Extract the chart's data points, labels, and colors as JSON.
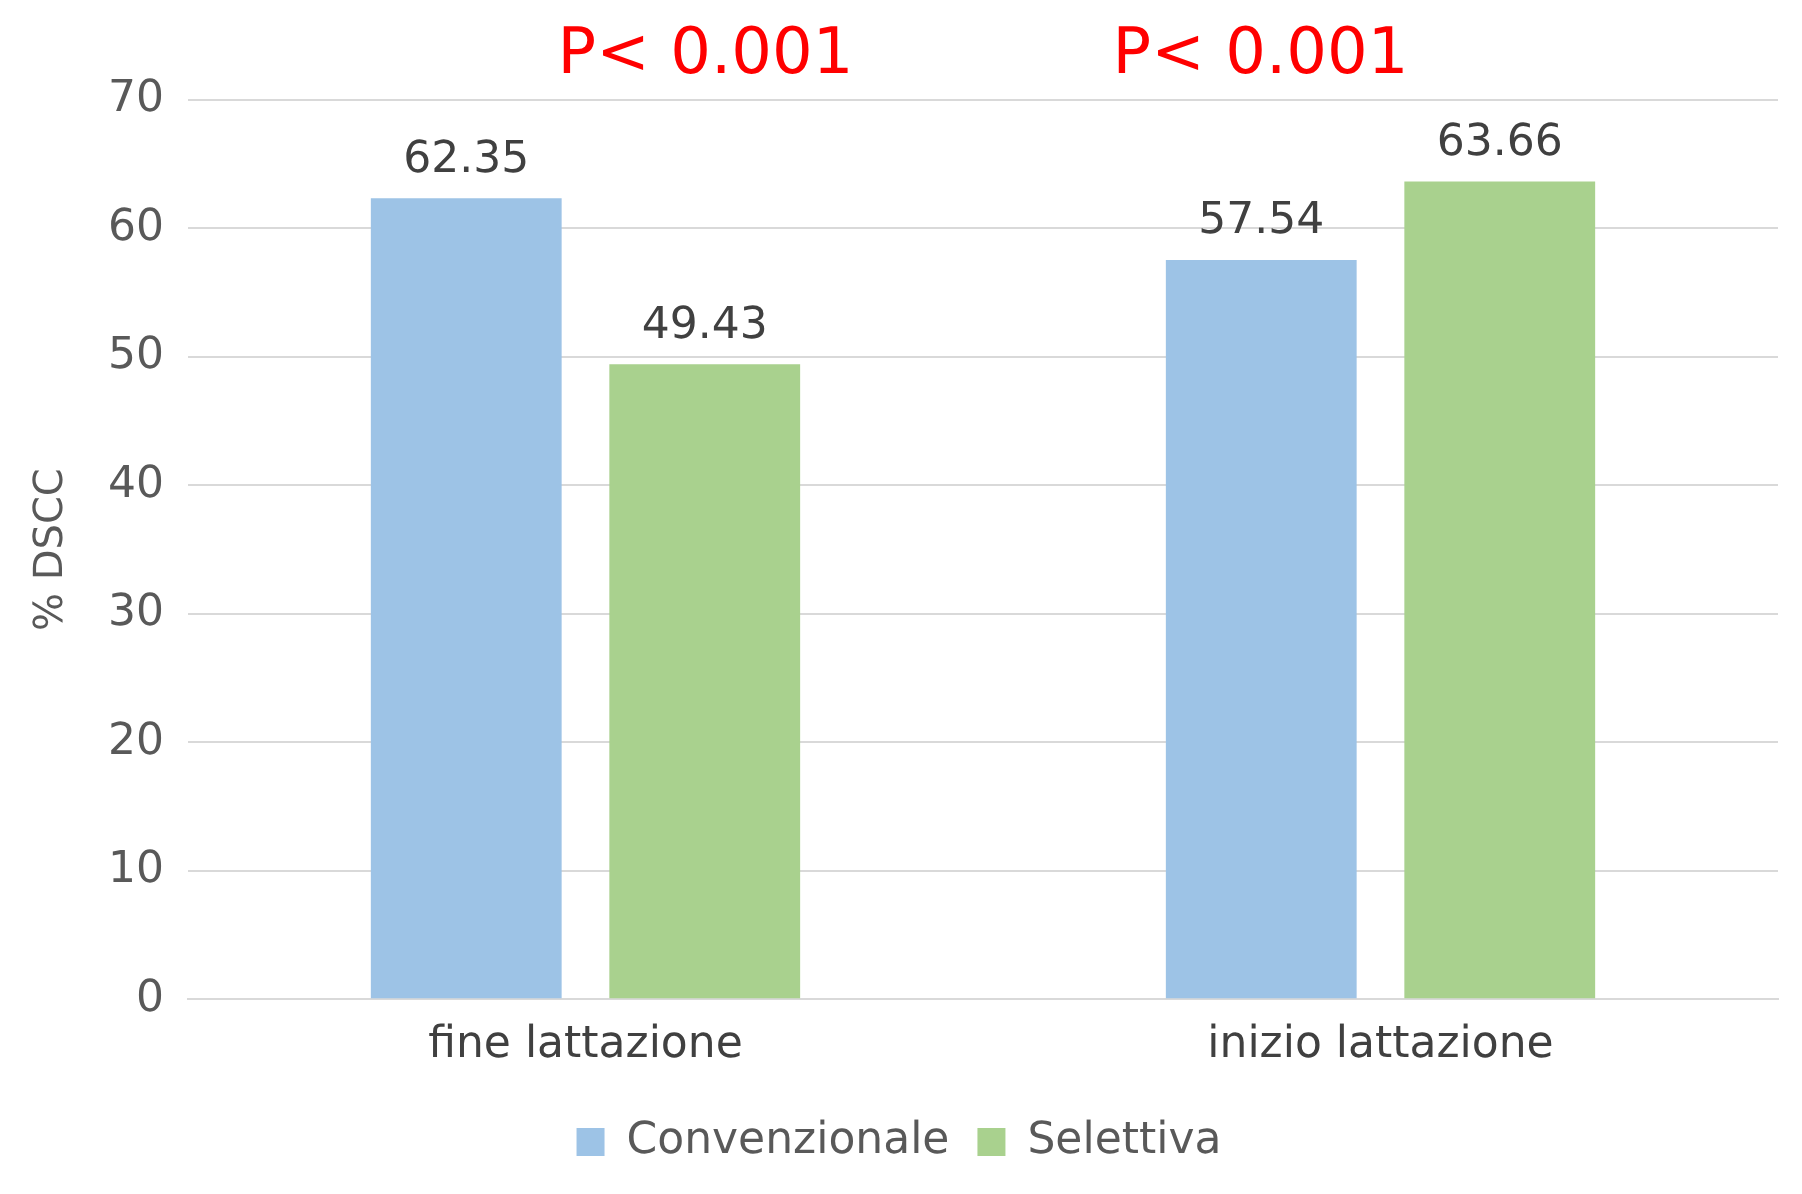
{
  "chart_data": {
    "type": "bar",
    "ylabel": "% DSCC",
    "categories": [
      "fine lattazione",
      "inizio lattazione"
    ],
    "series": [
      {
        "name": "Convenzionale",
        "color": "#9dc3e6",
        "values": [
          62.35,
          57.54
        ]
      },
      {
        "name": "Selettiva",
        "color": "#a9d18e",
        "values": [
          49.43,
          63.66
        ]
      }
    ],
    "ylim": [
      0,
      70
    ],
    "yticks": [
      0,
      10,
      20,
      30,
      40,
      50,
      60,
      70
    ],
    "grid": "y",
    "legend": "bottom",
    "data_labels": true,
    "annotations": [
      "P< 0.001",
      "P< 0.001"
    ]
  }
}
